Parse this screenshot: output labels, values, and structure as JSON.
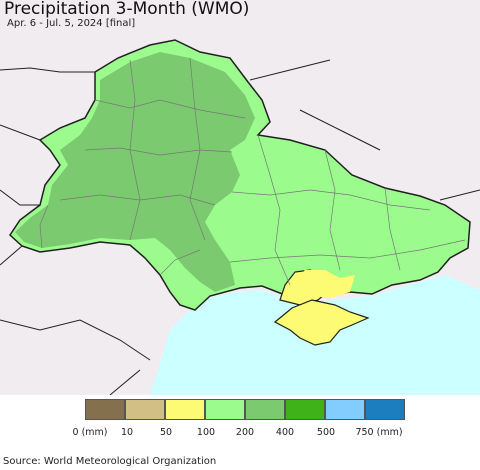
{
  "header": {
    "title": "Precipitation 3-Month (WMO)",
    "subtitle": "Apr. 6 - Jul. 5, 2024 [final]"
  },
  "legend": {
    "swatches": [
      {
        "color": "#84704c"
      },
      {
        "color": "#d2bf86"
      },
      {
        "color": "#fdfb73"
      },
      {
        "color": "#9bfc8d"
      },
      {
        "color": "#7cca70"
      },
      {
        "color": "#3fb21a"
      },
      {
        "color": "#82cdfd"
      },
      {
        "color": "#1d7ebf"
      }
    ],
    "labels": [
      "0 (mm)",
      "10",
      "50",
      "100",
      "200",
      "400",
      "500",
      "750 (mm)"
    ]
  },
  "map_colors": {
    "sea": "#ccffff",
    "outside": "#f0ecf0",
    "border": "#202020",
    "oblast_line": "#777777"
  },
  "footer": {
    "source": "Source: World Meteorological Organization"
  }
}
